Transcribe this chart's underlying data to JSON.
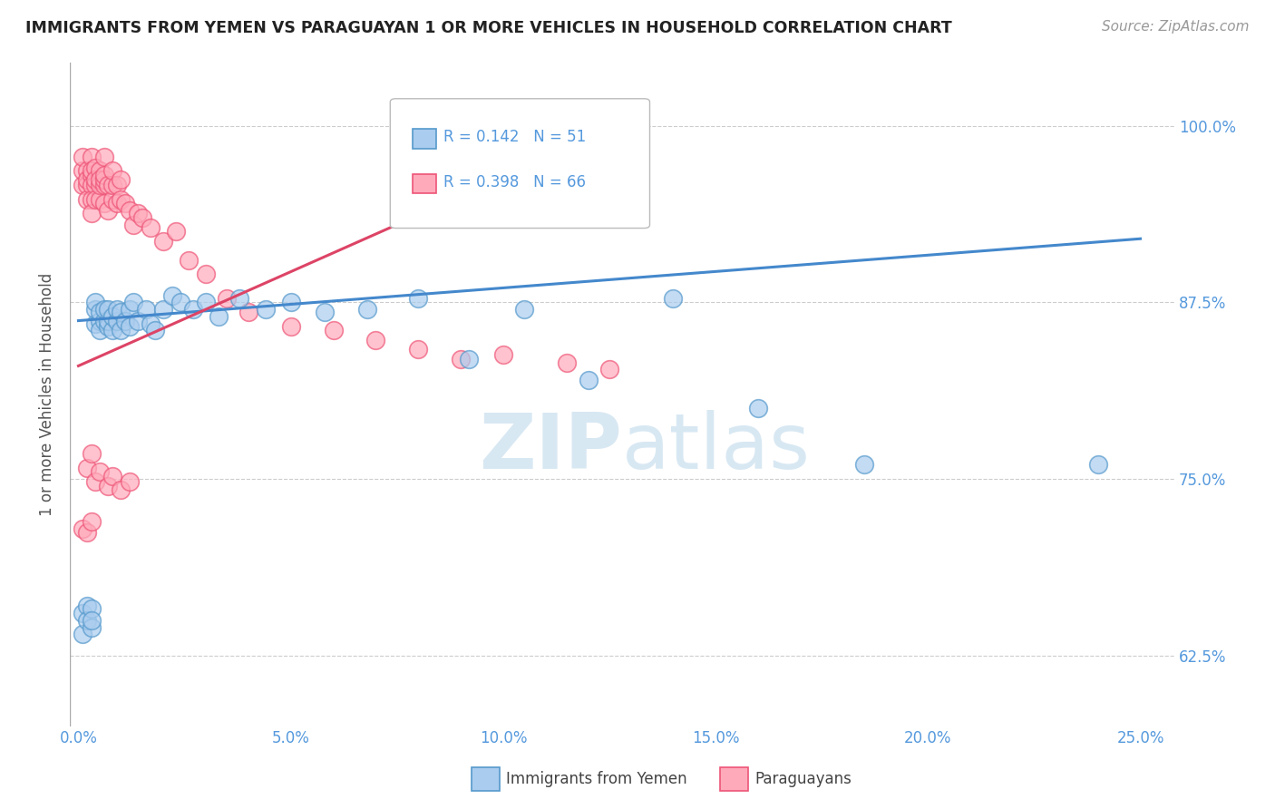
{
  "title": "IMMIGRANTS FROM YEMEN VS PARAGUAYAN 1 OR MORE VEHICLES IN HOUSEHOLD CORRELATION CHART",
  "source": "Source: ZipAtlas.com",
  "ylabel": "1 or more Vehicles in Household",
  "ytick_labels": [
    "62.5%",
    "75.0%",
    "87.5%",
    "100.0%"
  ],
  "ytick_values": [
    0.625,
    0.75,
    0.875,
    1.0
  ],
  "xtick_labels": [
    "0.0%",
    "5.0%",
    "10.0%",
    "15.0%",
    "20.0%",
    "25.0%"
  ],
  "xtick_values": [
    0.0,
    0.05,
    0.1,
    0.15,
    0.2,
    0.25
  ],
  "xlim": [
    -0.002,
    0.258
  ],
  "ylim": [
    0.575,
    1.045
  ],
  "legend1_r": "0.142",
  "legend1_n": "51",
  "legend2_r": "0.398",
  "legend2_n": "66",
  "legend_labels": [
    "Immigrants from Yemen",
    "Paraguayans"
  ],
  "blue_color": "#AACCEE",
  "pink_color": "#FFAABB",
  "blue_edge_color": "#5599CC",
  "pink_edge_color": "#EE5577",
  "blue_line_color": "#4488CC",
  "pink_line_color": "#DD4466",
  "title_color": "#222222",
  "axis_label_color": "#5599DD",
  "watermark_color": "#D8E8F3",
  "blue_trend_x0": 0.0,
  "blue_trend_y0": 0.862,
  "blue_trend_x1": 0.25,
  "blue_trend_y1": 0.92,
  "pink_trend_x0": 0.0,
  "pink_trend_y0": 0.83,
  "pink_trend_x1": 0.126,
  "pink_trend_y1": 0.998,
  "blue_x": [
    0.001,
    0.001,
    0.002,
    0.002,
    0.003,
    0.003,
    0.003,
    0.004,
    0.004,
    0.004,
    0.005,
    0.005,
    0.005,
    0.006,
    0.006,
    0.007,
    0.007,
    0.007,
    0.008,
    0.008,
    0.009,
    0.009,
    0.01,
    0.01,
    0.011,
    0.012,
    0.012,
    0.013,
    0.014,
    0.016,
    0.017,
    0.018,
    0.02,
    0.022,
    0.024,
    0.027,
    0.03,
    0.033,
    0.038,
    0.044,
    0.05,
    0.058,
    0.068,
    0.08,
    0.092,
    0.105,
    0.12,
    0.14,
    0.16,
    0.185,
    0.24
  ],
  "blue_y": [
    0.64,
    0.655,
    0.66,
    0.65,
    0.645,
    0.658,
    0.65,
    0.86,
    0.87,
    0.875,
    0.862,
    0.868,
    0.855,
    0.862,
    0.87,
    0.858,
    0.862,
    0.87,
    0.855,
    0.865,
    0.862,
    0.87,
    0.855,
    0.868,
    0.862,
    0.87,
    0.858,
    0.875,
    0.862,
    0.87,
    0.86,
    0.855,
    0.87,
    0.88,
    0.875,
    0.87,
    0.875,
    0.865,
    0.878,
    0.87,
    0.875,
    0.868,
    0.87,
    0.878,
    0.835,
    0.87,
    0.82,
    0.878,
    0.8,
    0.76,
    0.76
  ],
  "pink_x": [
    0.001,
    0.001,
    0.001,
    0.002,
    0.002,
    0.002,
    0.002,
    0.003,
    0.003,
    0.003,
    0.003,
    0.003,
    0.003,
    0.004,
    0.004,
    0.004,
    0.004,
    0.005,
    0.005,
    0.005,
    0.005,
    0.006,
    0.006,
    0.006,
    0.006,
    0.006,
    0.007,
    0.007,
    0.008,
    0.008,
    0.008,
    0.009,
    0.009,
    0.01,
    0.01,
    0.011,
    0.012,
    0.013,
    0.014,
    0.015,
    0.017,
    0.02,
    0.023,
    0.026,
    0.03,
    0.035,
    0.04,
    0.05,
    0.06,
    0.07,
    0.08,
    0.09,
    0.1,
    0.115,
    0.125,
    0.002,
    0.003,
    0.004,
    0.005,
    0.007,
    0.008,
    0.01,
    0.012,
    0.001,
    0.002,
    0.003
  ],
  "pink_y": [
    0.958,
    0.968,
    0.978,
    0.958,
    0.968,
    0.948,
    0.962,
    0.965,
    0.978,
    0.958,
    0.948,
    0.938,
    0.968,
    0.958,
    0.948,
    0.97,
    0.962,
    0.948,
    0.958,
    0.968,
    0.962,
    0.958,
    0.945,
    0.962,
    0.978,
    0.965,
    0.958,
    0.94,
    0.948,
    0.958,
    0.968,
    0.945,
    0.958,
    0.948,
    0.962,
    0.945,
    0.94,
    0.93,
    0.938,
    0.935,
    0.928,
    0.918,
    0.925,
    0.905,
    0.895,
    0.878,
    0.868,
    0.858,
    0.855,
    0.848,
    0.842,
    0.835,
    0.838,
    0.832,
    0.828,
    0.758,
    0.768,
    0.748,
    0.755,
    0.745,
    0.752,
    0.742,
    0.748,
    0.715,
    0.712,
    0.72
  ]
}
